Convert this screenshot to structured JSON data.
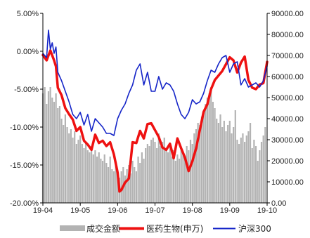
{
  "chart_data": {
    "type": "combo",
    "title": "",
    "x_tick_labels": [
      "19-04",
      "19-05",
      "19-06",
      "19-07",
      "19-08",
      "19-09",
      "19-10"
    ],
    "left_axis": {
      "label": "",
      "range": [
        -0.2,
        0.05
      ],
      "ticks": [
        0.05,
        0.0,
        -0.05,
        -0.1,
        -0.15,
        -0.2
      ],
      "tick_labels": [
        "5.00%",
        "0.00%",
        "-5.00%",
        "-10.00%",
        "-15.00%",
        "-20.00%"
      ]
    },
    "right_axis": {
      "label": "",
      "range": [
        0,
        90000
      ],
      "ticks": [
        90000,
        80000,
        70000,
        60000,
        50000,
        40000,
        30000,
        20000,
        10000,
        0
      ],
      "tick_labels": [
        "90000.00",
        "80000.00",
        "70000.00",
        "60000.00",
        "50000.00",
        "40000.00",
        "30000.00",
        "20000.00",
        "10000.00",
        "0.00"
      ]
    },
    "x_range": [
      0,
      6
    ],
    "legend_position": "bottom",
    "grid": false,
    "series": [
      {
        "name": "成交金额",
        "type": "bar",
        "axis": "right",
        "color": "#b3b3b3",
        "x": [
          0.0,
          0.05,
          0.1,
          0.15,
          0.2,
          0.25,
          0.3,
          0.35,
          0.4,
          0.45,
          0.5,
          0.55,
          0.6,
          0.65,
          0.7,
          0.75,
          0.8,
          0.85,
          0.9,
          0.95,
          1.0,
          1.05,
          1.1,
          1.15,
          1.2,
          1.25,
          1.3,
          1.35,
          1.4,
          1.45,
          1.5,
          1.55,
          1.6,
          1.65,
          1.7,
          1.75,
          1.8,
          1.85,
          1.9,
          1.95,
          2.0,
          2.05,
          2.1,
          2.15,
          2.2,
          2.25,
          2.3,
          2.35,
          2.4,
          2.45,
          2.5,
          2.55,
          2.6,
          2.65,
          2.7,
          2.75,
          2.8,
          2.85,
          2.9,
          2.95,
          3.0,
          3.05,
          3.1,
          3.15,
          3.2,
          3.25,
          3.3,
          3.35,
          3.4,
          3.45,
          3.5,
          3.55,
          3.6,
          3.65,
          3.7,
          3.75,
          3.8,
          3.85,
          3.9,
          3.95,
          4.0,
          4.05,
          4.1,
          4.15,
          4.2,
          4.25,
          4.3,
          4.35,
          4.4,
          4.45,
          4.5,
          4.55,
          4.6,
          4.65,
          4.7,
          4.75,
          4.8,
          4.85,
          4.9,
          4.95,
          5.0,
          5.05,
          5.1,
          5.15,
          5.2,
          5.25,
          5.3,
          5.35,
          5.4,
          5.45,
          5.5,
          5.55,
          5.6,
          5.65,
          5.7,
          5.75,
          5.8,
          5.85,
          5.9,
          5.95
        ],
        "values": [
          52000,
          55000,
          47000,
          53000,
          55000,
          50000,
          48000,
          52000,
          45000,
          46000,
          40000,
          37000,
          42000,
          36000,
          33000,
          35000,
          31000,
          34000,
          28000,
          30000,
          32000,
          28000,
          26000,
          29000,
          25000,
          24000,
          27000,
          23000,
          25000,
          22000,
          24000,
          21000,
          20000,
          23000,
          19000,
          17000,
          22000,
          16000,
          15000,
          18000,
          14000,
          12000,
          15000,
          17000,
          13000,
          16000,
          18000,
          14000,
          20000,
          17000,
          15000,
          22000,
          19000,
          24000,
          21000,
          26000,
          28000,
          27000,
          30000,
          31000,
          29000,
          26000,
          33000,
          27000,
          29000,
          31000,
          26000,
          24000,
          28000,
          22000,
          25000,
          20000,
          23000,
          21000,
          26000,
          24000,
          22000,
          27000,
          25000,
          30000,
          28000,
          33000,
          35000,
          38000,
          37000,
          41000,
          43000,
          47000,
          50000,
          52000,
          55000,
          48000,
          45000,
          40000,
          38000,
          42000,
          36000,
          39000,
          34000,
          37000,
          39000,
          33000,
          36000,
          44000,
          30000,
          28000,
          31000,
          33000,
          29000,
          32000,
          34000,
          38000,
          26000,
          30000,
          27000,
          20000,
          25000,
          29000,
          32000,
          36000
        ]
      },
      {
        "name": "医药生物(申万)",
        "type": "line",
        "axis": "left",
        "color": "#ee1111",
        "x": [
          0.0,
          0.1,
          0.2,
          0.3,
          0.35,
          0.4,
          0.5,
          0.6,
          0.7,
          0.8,
          0.9,
          1.0,
          1.1,
          1.2,
          1.3,
          1.4,
          1.5,
          1.6,
          1.7,
          1.8,
          1.9,
          2.0,
          2.05,
          2.1,
          2.2,
          2.3,
          2.4,
          2.5,
          2.6,
          2.7,
          2.8,
          2.9,
          3.0,
          3.1,
          3.2,
          3.3,
          3.4,
          3.5,
          3.6,
          3.7,
          3.8,
          3.9,
          4.0,
          4.1,
          4.2,
          4.3,
          4.4,
          4.5,
          4.6,
          4.7,
          4.8,
          4.9,
          5.0,
          5.1,
          5.2,
          5.3,
          5.4,
          5.5,
          5.6,
          5.7,
          5.8,
          5.9,
          6.0
        ],
        "values": [
          -0.005,
          -0.012,
          0.001,
          -0.012,
          -0.02,
          -0.048,
          -0.058,
          -0.075,
          -0.083,
          -0.09,
          -0.105,
          -0.1,
          -0.118,
          -0.123,
          -0.13,
          -0.11,
          -0.121,
          -0.118,
          -0.125,
          -0.12,
          -0.136,
          -0.16,
          -0.185,
          -0.183,
          -0.173,
          -0.168,
          -0.12,
          -0.121,
          -0.105,
          -0.115,
          -0.096,
          -0.095,
          -0.104,
          -0.113,
          -0.127,
          -0.13,
          -0.122,
          -0.141,
          -0.115,
          -0.128,
          -0.14,
          -0.158,
          -0.145,
          -0.128,
          -0.104,
          -0.08,
          -0.07,
          -0.05,
          -0.038,
          -0.032,
          -0.026,
          -0.017,
          -0.008,
          -0.012,
          -0.028,
          -0.015,
          -0.007,
          -0.038,
          -0.048,
          -0.05,
          -0.044,
          -0.042,
          -0.014
        ]
      },
      {
        "name": "沪深300",
        "type": "line",
        "axis": "right",
        "color": "#1525c8",
        "x": [
          0.0,
          0.1,
          0.15,
          0.2,
          0.25,
          0.3,
          0.35,
          0.4,
          0.5,
          0.6,
          0.7,
          0.8,
          0.9,
          1.0,
          1.1,
          1.2,
          1.3,
          1.4,
          1.5,
          1.6,
          1.7,
          1.8,
          1.9,
          2.0,
          2.1,
          2.2,
          2.3,
          2.4,
          2.5,
          2.6,
          2.7,
          2.8,
          2.9,
          3.0,
          3.1,
          3.2,
          3.3,
          3.4,
          3.5,
          3.6,
          3.7,
          3.8,
          3.9,
          4.0,
          4.1,
          4.2,
          4.3,
          4.4,
          4.5,
          4.6,
          4.7,
          4.8,
          4.9,
          5.0,
          5.1,
          5.2,
          5.3,
          5.4,
          5.5,
          5.6,
          5.7,
          5.8,
          5.9,
          6.0
        ],
        "values": [
          71000,
          69000,
          82000,
          73000,
          76000,
          71000,
          74000,
          62000,
          58000,
          53000,
          48000,
          42000,
          40000,
          43000,
          37000,
          42000,
          34000,
          40000,
          38000,
          36000,
          33000,
          33000,
          32000,
          40000,
          44000,
          47000,
          52000,
          56000,
          63000,
          66000,
          56000,
          62000,
          53000,
          53000,
          60000,
          54000,
          57000,
          56000,
          53000,
          47000,
          42000,
          40000,
          43000,
          49000,
          47000,
          48000,
          52000,
          58000,
          63000,
          62000,
          66000,
          69000,
          70000,
          62000,
          66000,
          67000,
          56000,
          59000,
          55000,
          56000,
          57000,
          55000,
          58000,
          65000
        ]
      }
    ]
  },
  "legend": {
    "items": [
      "成交金额",
      "医药生物(申万)",
      "沪深300"
    ]
  }
}
